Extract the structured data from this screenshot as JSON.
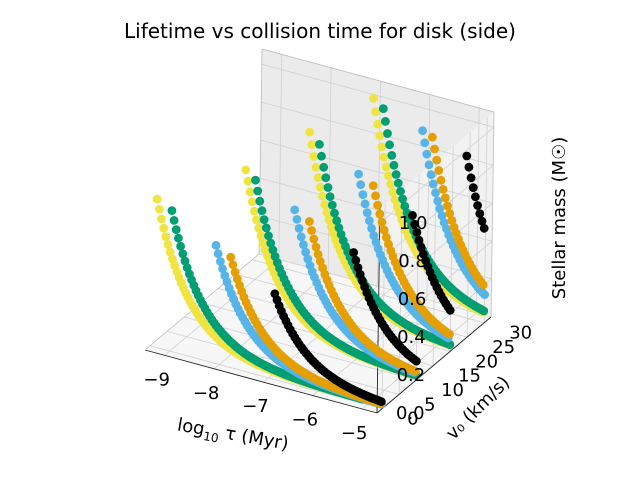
{
  "chart_data": {
    "type": "scatter",
    "projection": "3d",
    "title": "Lifetime vs collision time for disk (side)",
    "axes": {
      "x": {
        "label_main": "log",
        "label_sub": "10",
        "label_rest": " τ (Myr)",
        "ticks": [
          "−9",
          "−8",
          "−7",
          "−6",
          "−5"
        ],
        "tick_values": [
          -9,
          -8,
          -7,
          -6,
          -5
        ],
        "range": [
          -9.4,
          -4.7
        ]
      },
      "y": {
        "label": "v₀ (km/s)",
        "ticks": [
          "0",
          "5",
          "10",
          "15",
          "20",
          "25",
          "30"
        ],
        "tick_values": [
          0,
          5,
          10,
          15,
          20,
          25,
          30
        ],
        "range": [
          -1.5,
          32
        ]
      },
      "z": {
        "label": "Stellar mass (M☉)",
        "ticks": [
          "0.0",
          "0.2",
          "0.4",
          "0.6",
          "0.8",
          "1.0"
        ],
        "tick_values": [
          0,
          0.2,
          0.4,
          0.6,
          0.8,
          1.0
        ],
        "range": [
          0,
          1.08
        ]
      }
    },
    "grid": true,
    "legend": "none",
    "colors": [
      "#f0e442",
      "#009e73",
      "#56b4e9",
      "#e69f00",
      "#000000"
    ],
    "curve_model": "z = z_min + (z_max - z_min) * exp(-k * (x - x0))",
    "series": [
      {
        "color": "#f0e442",
        "v0": 0,
        "x0": -9.3,
        "z_max": 0.78,
        "k": 1.5,
        "z_min": 0.02
      },
      {
        "color": "#009e73",
        "v0": 0,
        "x0": -9.0,
        "z_max": 0.74,
        "k": 1.5,
        "z_min": 0.02
      },
      {
        "color": "#56b4e9",
        "v0": 0,
        "x0": -8.1,
        "z_max": 0.62,
        "k": 1.5,
        "z_min": 0.02
      },
      {
        "color": "#e69f00",
        "v0": 0,
        "x0": -7.8,
        "z_max": 0.58,
        "k": 1.5,
        "z_min": 0.02
      },
      {
        "color": "#000000",
        "v0": 0,
        "x0": -6.9,
        "z_max": 0.45,
        "k": 1.5,
        "z_min": 0.02
      },
      {
        "color": "#f0e442",
        "v0": 10,
        "x0": -8.2,
        "z_max": 0.86,
        "k": 1.5,
        "z_min": 0.02
      },
      {
        "color": "#009e73",
        "v0": 10,
        "x0": -8.0,
        "z_max": 0.82,
        "k": 1.5,
        "z_min": 0.02
      },
      {
        "color": "#56b4e9",
        "v0": 10,
        "x0": -7.2,
        "z_max": 0.72,
        "k": 1.5,
        "z_min": 0.02
      },
      {
        "color": "#e69f00",
        "v0": 10,
        "x0": -6.9,
        "z_max": 0.68,
        "k": 1.5,
        "z_min": 0.02
      },
      {
        "color": "#000000",
        "v0": 10,
        "x0": -6.0,
        "z_max": 0.58,
        "k": 1.5,
        "z_min": 0.02
      },
      {
        "color": "#f0e442",
        "v0": 20,
        "x0": -7.6,
        "z_max": 0.95,
        "k": 1.5,
        "z_min": 0.02
      },
      {
        "color": "#009e73",
        "v0": 20,
        "x0": -7.4,
        "z_max": 0.9,
        "k": 1.5,
        "z_min": 0.02
      },
      {
        "color": "#56b4e9",
        "v0": 20,
        "x0": -6.6,
        "z_max": 0.8,
        "k": 1.5,
        "z_min": 0.02
      },
      {
        "color": "#e69f00",
        "v0": 20,
        "x0": -6.3,
        "z_max": 0.76,
        "k": 1.5,
        "z_min": 0.02
      },
      {
        "color": "#000000",
        "v0": 20,
        "x0": -5.5,
        "z_max": 0.66,
        "k": 1.5,
        "z_min": 0.02
      },
      {
        "color": "#f0e442",
        "v0": 30,
        "x0": -7.0,
        "z_max": 1.02,
        "k": 1.5,
        "z_min": 0.02
      },
      {
        "color": "#009e73",
        "v0": 30,
        "x0": -6.8,
        "z_max": 0.98,
        "k": 1.5,
        "z_min": 0.02
      },
      {
        "color": "#56b4e9",
        "v0": 30,
        "x0": -6.0,
        "z_max": 0.92,
        "k": 1.5,
        "z_min": 0.02
      },
      {
        "color": "#e69f00",
        "v0": 30,
        "x0": -5.8,
        "z_max": 0.9,
        "k": 1.5,
        "z_min": 0.02
      },
      {
        "color": "#000000",
        "v0": 30,
        "x0": -5.1,
        "z_max": 0.85,
        "k": 1.5,
        "z_min": 0.02
      }
    ]
  }
}
